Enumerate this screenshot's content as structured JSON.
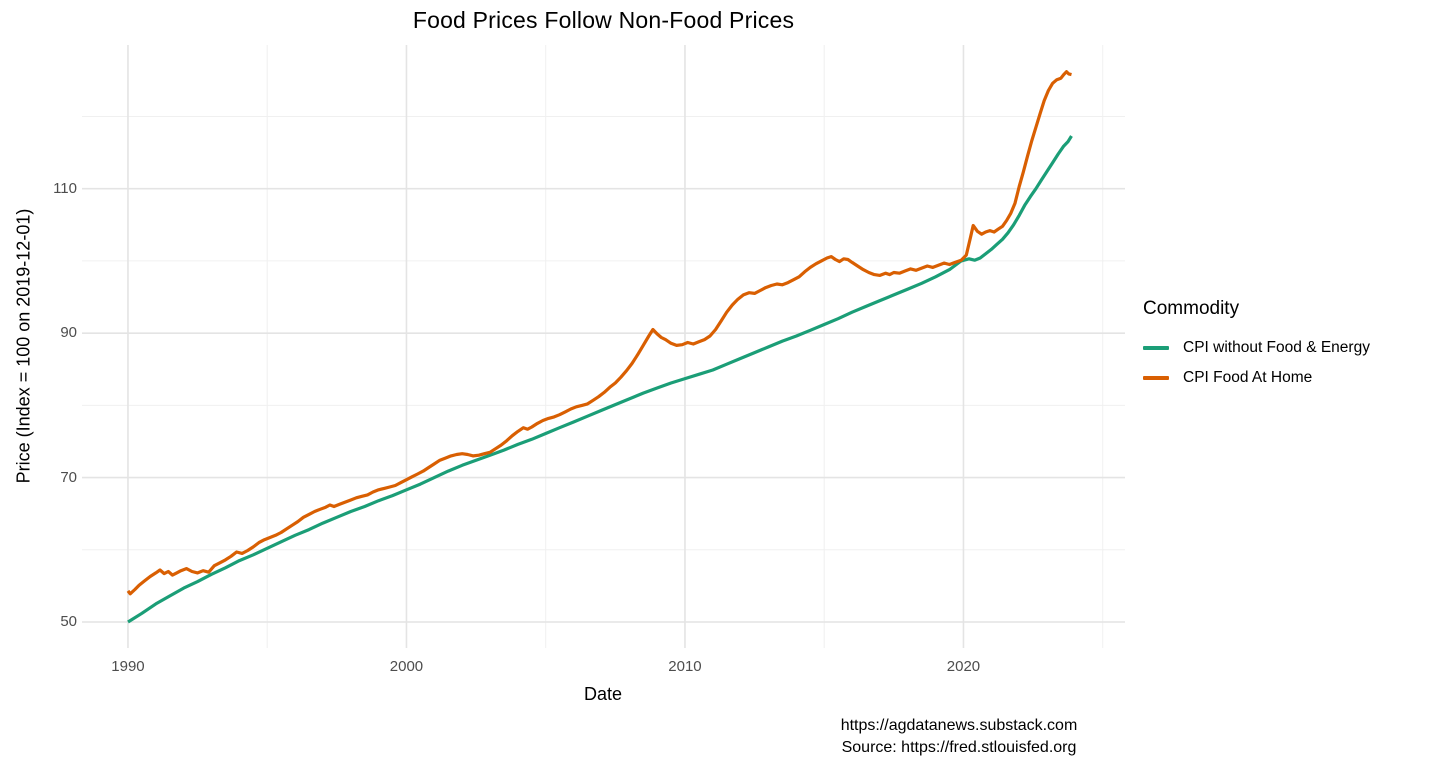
{
  "title": "Food Prices Follow Non-Food Prices",
  "axes": {
    "x": {
      "label": "Date"
    },
    "y": {
      "label": "Price (Index = 100 on 2019-12-01)"
    }
  },
  "legend": {
    "title": "Commodity"
  },
  "footer": {
    "line1": "https://agdatanews.substack.com",
    "line2": "Source: https://fred.stlouisfed.org"
  },
  "colors": {
    "green_series": "#1B9E77",
    "orange_series": "#D95F02",
    "grid_major": "#E4E4E4",
    "grid_minor": "#F0F0F0",
    "tick_text": "#4d4d4d"
  },
  "chart_data": {
    "type": "line",
    "title": "Food Prices Follow Non-Food Prices",
    "xlabel": "Date",
    "ylabel": "Price (Index = 100 on 2019-12-01)",
    "legend_title": "Commodity",
    "legend_position": "right",
    "grid": "on",
    "x_ticks": [
      1990,
      2000,
      2010,
      2020
    ],
    "x_minor_ticks": [
      1995,
      2005,
      2015,
      2025
    ],
    "y_ticks": [
      50,
      70,
      90,
      110
    ],
    "y_minor_ticks": [
      60,
      80,
      100,
      120
    ],
    "xlim": [
      1988.35,
      2025.8
    ],
    "ylim": [
      46.4,
      129.9
    ],
    "series": [
      {
        "name": "CPI without Food & Energy",
        "color": "#1B9E77",
        "points": [
          [
            1990.0,
            50.0
          ],
          [
            1990.5,
            51.2
          ],
          [
            1991.0,
            52.5
          ],
          [
            1991.5,
            53.6
          ],
          [
            1992.0,
            54.7
          ],
          [
            1992.5,
            55.6
          ],
          [
            1993.0,
            56.6
          ],
          [
            1993.5,
            57.5
          ],
          [
            1994.0,
            58.5
          ],
          [
            1994.5,
            59.3
          ],
          [
            1995.0,
            60.2
          ],
          [
            1995.5,
            61.1
          ],
          [
            1996.0,
            62.0
          ],
          [
            1996.5,
            62.8
          ],
          [
            1997.0,
            63.7
          ],
          [
            1997.5,
            64.5
          ],
          [
            1998.0,
            65.3
          ],
          [
            1998.5,
            66.0
          ],
          [
            1999.0,
            66.8
          ],
          [
            1999.5,
            67.5
          ],
          [
            2000.0,
            68.3
          ],
          [
            2000.5,
            69.1
          ],
          [
            2001.0,
            70.0
          ],
          [
            2001.5,
            70.9
          ],
          [
            2002.0,
            71.7
          ],
          [
            2002.5,
            72.4
          ],
          [
            2003.0,
            73.1
          ],
          [
            2003.5,
            73.8
          ],
          [
            2004.0,
            74.6
          ],
          [
            2004.5,
            75.3
          ],
          [
            2005.0,
            76.1
          ],
          [
            2005.5,
            76.9
          ],
          [
            2006.0,
            77.7
          ],
          [
            2006.5,
            78.5
          ],
          [
            2007.0,
            79.3
          ],
          [
            2007.5,
            80.1
          ],
          [
            2008.0,
            80.9
          ],
          [
            2008.5,
            81.7
          ],
          [
            2009.0,
            82.4
          ],
          [
            2009.5,
            83.1
          ],
          [
            2010.0,
            83.7
          ],
          [
            2010.5,
            84.3
          ],
          [
            2011.0,
            84.9
          ],
          [
            2011.5,
            85.7
          ],
          [
            2012.0,
            86.5
          ],
          [
            2012.5,
            87.3
          ],
          [
            2013.0,
            88.1
          ],
          [
            2013.5,
            88.9
          ],
          [
            2014.0,
            89.6
          ],
          [
            2014.5,
            90.4
          ],
          [
            2015.0,
            91.2
          ],
          [
            2015.5,
            92.0
          ],
          [
            2016.0,
            92.9
          ],
          [
            2016.5,
            93.7
          ],
          [
            2017.0,
            94.5
          ],
          [
            2017.5,
            95.3
          ],
          [
            2018.0,
            96.1
          ],
          [
            2018.5,
            96.9
          ],
          [
            2019.0,
            97.8
          ],
          [
            2019.5,
            98.8
          ],
          [
            2019.92,
            100.0
          ],
          [
            2020.2,
            100.3
          ],
          [
            2020.4,
            100.1
          ],
          [
            2020.6,
            100.4
          ],
          [
            2020.8,
            101.0
          ],
          [
            2021.0,
            101.6
          ],
          [
            2021.2,
            102.3
          ],
          [
            2021.4,
            103.0
          ],
          [
            2021.6,
            103.9
          ],
          [
            2021.8,
            105.0
          ],
          [
            2022.0,
            106.3
          ],
          [
            2022.2,
            107.7
          ],
          [
            2022.4,
            108.9
          ],
          [
            2022.6,
            110.0
          ],
          [
            2022.8,
            111.2
          ],
          [
            2023.0,
            112.4
          ],
          [
            2023.2,
            113.6
          ],
          [
            2023.4,
            114.8
          ],
          [
            2023.6,
            115.9
          ],
          [
            2023.75,
            116.5
          ],
          [
            2023.88,
            117.3
          ]
        ]
      },
      {
        "name": "CPI Food At Home",
        "color": "#D95F02",
        "points": [
          [
            1990.0,
            54.3
          ],
          [
            1990.08,
            53.9
          ],
          [
            1990.25,
            54.5
          ],
          [
            1990.4,
            55.1
          ],
          [
            1990.6,
            55.7
          ],
          [
            1990.8,
            56.3
          ],
          [
            1991.0,
            56.8
          ],
          [
            1991.15,
            57.2
          ],
          [
            1991.3,
            56.7
          ],
          [
            1991.45,
            57.0
          ],
          [
            1991.6,
            56.5
          ],
          [
            1991.75,
            56.8
          ],
          [
            1991.9,
            57.1
          ],
          [
            1992.1,
            57.4
          ],
          [
            1992.3,
            57.0
          ],
          [
            1992.5,
            56.8
          ],
          [
            1992.7,
            57.1
          ],
          [
            1992.9,
            56.9
          ],
          [
            1993.1,
            57.8
          ],
          [
            1993.3,
            58.2
          ],
          [
            1993.5,
            58.6
          ],
          [
            1993.7,
            59.1
          ],
          [
            1993.9,
            59.7
          ],
          [
            1994.1,
            59.5
          ],
          [
            1994.3,
            59.9
          ],
          [
            1994.5,
            60.4
          ],
          [
            1994.7,
            61.0
          ],
          [
            1994.9,
            61.4
          ],
          [
            1995.1,
            61.7
          ],
          [
            1995.3,
            62.0
          ],
          [
            1995.5,
            62.4
          ],
          [
            1995.7,
            62.9
          ],
          [
            1995.9,
            63.4
          ],
          [
            1996.1,
            63.9
          ],
          [
            1996.3,
            64.5
          ],
          [
            1996.5,
            64.9
          ],
          [
            1996.7,
            65.3
          ],
          [
            1996.9,
            65.6
          ],
          [
            1997.1,
            65.9
          ],
          [
            1997.25,
            66.2
          ],
          [
            1997.4,
            66.0
          ],
          [
            1997.6,
            66.3
          ],
          [
            1997.8,
            66.6
          ],
          [
            1998.0,
            66.9
          ],
          [
            1998.2,
            67.2
          ],
          [
            1998.4,
            67.4
          ],
          [
            1998.6,
            67.6
          ],
          [
            1998.8,
            68.0
          ],
          [
            1999.0,
            68.3
          ],
          [
            1999.2,
            68.5
          ],
          [
            1999.4,
            68.7
          ],
          [
            1999.6,
            68.9
          ],
          [
            1999.8,
            69.3
          ],
          [
            2000.0,
            69.7
          ],
          [
            2000.2,
            70.1
          ],
          [
            2000.4,
            70.5
          ],
          [
            2000.6,
            70.9
          ],
          [
            2000.8,
            71.4
          ],
          [
            2001.0,
            71.9
          ],
          [
            2001.2,
            72.4
          ],
          [
            2001.4,
            72.7
          ],
          [
            2001.6,
            73.0
          ],
          [
            2001.8,
            73.2
          ],
          [
            2002.0,
            73.3
          ],
          [
            2002.2,
            73.2
          ],
          [
            2002.4,
            73.0
          ],
          [
            2002.6,
            73.1
          ],
          [
            2002.8,
            73.3
          ],
          [
            2003.0,
            73.5
          ],
          [
            2003.2,
            74.0
          ],
          [
            2003.4,
            74.5
          ],
          [
            2003.6,
            75.1
          ],
          [
            2003.8,
            75.8
          ],
          [
            2004.0,
            76.4
          ],
          [
            2004.2,
            76.9
          ],
          [
            2004.35,
            76.7
          ],
          [
            2004.5,
            77.0
          ],
          [
            2004.7,
            77.5
          ],
          [
            2004.9,
            77.9
          ],
          [
            2005.1,
            78.2
          ],
          [
            2005.3,
            78.4
          ],
          [
            2005.5,
            78.7
          ],
          [
            2005.7,
            79.1
          ],
          [
            2005.9,
            79.5
          ],
          [
            2006.1,
            79.8
          ],
          [
            2006.3,
            80.0
          ],
          [
            2006.5,
            80.2
          ],
          [
            2006.7,
            80.7
          ],
          [
            2006.9,
            81.2
          ],
          [
            2007.1,
            81.8
          ],
          [
            2007.3,
            82.5
          ],
          [
            2007.5,
            83.1
          ],
          [
            2007.7,
            83.9
          ],
          [
            2007.9,
            84.8
          ],
          [
            2008.1,
            85.8
          ],
          [
            2008.3,
            87.0
          ],
          [
            2008.5,
            88.3
          ],
          [
            2008.7,
            89.6
          ],
          [
            2008.85,
            90.5
          ],
          [
            2009.0,
            89.9
          ],
          [
            2009.15,
            89.4
          ],
          [
            2009.3,
            89.1
          ],
          [
            2009.5,
            88.6
          ],
          [
            2009.7,
            88.3
          ],
          [
            2009.9,
            88.4
          ],
          [
            2010.1,
            88.7
          ],
          [
            2010.3,
            88.5
          ],
          [
            2010.5,
            88.8
          ],
          [
            2010.7,
            89.1
          ],
          [
            2010.9,
            89.6
          ],
          [
            2011.1,
            90.5
          ],
          [
            2011.3,
            91.7
          ],
          [
            2011.5,
            92.9
          ],
          [
            2011.7,
            93.9
          ],
          [
            2011.9,
            94.7
          ],
          [
            2012.1,
            95.3
          ],
          [
            2012.3,
            95.6
          ],
          [
            2012.5,
            95.5
          ],
          [
            2012.7,
            95.9
          ],
          [
            2012.9,
            96.3
          ],
          [
            2013.1,
            96.6
          ],
          [
            2013.3,
            96.8
          ],
          [
            2013.5,
            96.7
          ],
          [
            2013.7,
            97.0
          ],
          [
            2013.9,
            97.4
          ],
          [
            2014.1,
            97.8
          ],
          [
            2014.3,
            98.5
          ],
          [
            2014.5,
            99.1
          ],
          [
            2014.7,
            99.6
          ],
          [
            2014.9,
            100.0
          ],
          [
            2015.1,
            100.4
          ],
          [
            2015.25,
            100.6
          ],
          [
            2015.4,
            100.2
          ],
          [
            2015.55,
            99.9
          ],
          [
            2015.7,
            100.3
          ],
          [
            2015.85,
            100.2
          ],
          [
            2016.0,
            99.8
          ],
          [
            2016.2,
            99.3
          ],
          [
            2016.4,
            98.8
          ],
          [
            2016.6,
            98.4
          ],
          [
            2016.8,
            98.1
          ],
          [
            2017.0,
            98.0
          ],
          [
            2017.2,
            98.3
          ],
          [
            2017.35,
            98.1
          ],
          [
            2017.5,
            98.4
          ],
          [
            2017.7,
            98.3
          ],
          [
            2017.9,
            98.6
          ],
          [
            2018.1,
            98.9
          ],
          [
            2018.3,
            98.7
          ],
          [
            2018.5,
            99.0
          ],
          [
            2018.7,
            99.3
          ],
          [
            2018.9,
            99.1
          ],
          [
            2019.1,
            99.4
          ],
          [
            2019.3,
            99.7
          ],
          [
            2019.5,
            99.5
          ],
          [
            2019.7,
            99.8
          ],
          [
            2019.92,
            100.1
          ],
          [
            2020.1,
            100.8
          ],
          [
            2020.25,
            103.2
          ],
          [
            2020.35,
            104.9
          ],
          [
            2020.5,
            104.1
          ],
          [
            2020.65,
            103.7
          ],
          [
            2020.8,
            104.0
          ],
          [
            2020.95,
            104.2
          ],
          [
            2021.1,
            104.0
          ],
          [
            2021.25,
            104.4
          ],
          [
            2021.4,
            104.8
          ],
          [
            2021.55,
            105.6
          ],
          [
            2021.7,
            106.6
          ],
          [
            2021.85,
            108.0
          ],
          [
            2022.0,
            110.3
          ],
          [
            2022.15,
            112.3
          ],
          [
            2022.3,
            114.5
          ],
          [
            2022.45,
            116.6
          ],
          [
            2022.6,
            118.5
          ],
          [
            2022.75,
            120.4
          ],
          [
            2022.9,
            122.2
          ],
          [
            2023.05,
            123.6
          ],
          [
            2023.2,
            124.6
          ],
          [
            2023.35,
            125.1
          ],
          [
            2023.5,
            125.3
          ],
          [
            2023.6,
            125.8
          ],
          [
            2023.7,
            126.2
          ],
          [
            2023.78,
            125.9
          ],
          [
            2023.88,
            125.8
          ]
        ]
      }
    ]
  }
}
